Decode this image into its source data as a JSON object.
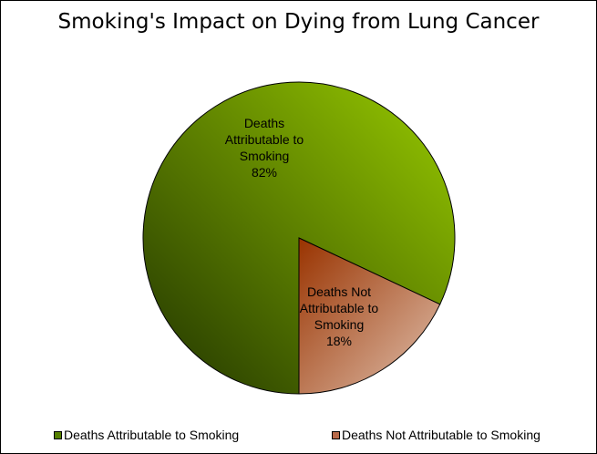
{
  "chart_data": {
    "type": "pie",
    "title": "Smoking's Impact on Dying from Lung Cancer",
    "slices": [
      {
        "name": "Deaths Attributable to Smoking",
        "value": 82,
        "label_lines": [
          "Deaths",
          "Attributable to",
          "Smoking",
          "82%"
        ],
        "color_light": "#99cc00",
        "color_dark": "#203300"
      },
      {
        "name": "Deaths Not Attributable to Smoking",
        "value": 18,
        "label_lines": [
          "Deaths Not",
          "Attributable to",
          "Smoking",
          "18%"
        ],
        "color_light": "#e0c0ad",
        "color_dark": "#993300"
      }
    ],
    "legend_placement": "bottom",
    "legend": [
      {
        "label": "Deaths Attributable to Smoking",
        "color": "#558000"
      },
      {
        "label": "Deaths Not Attributable to Smoking",
        "color": "#b86a4a"
      }
    ]
  }
}
